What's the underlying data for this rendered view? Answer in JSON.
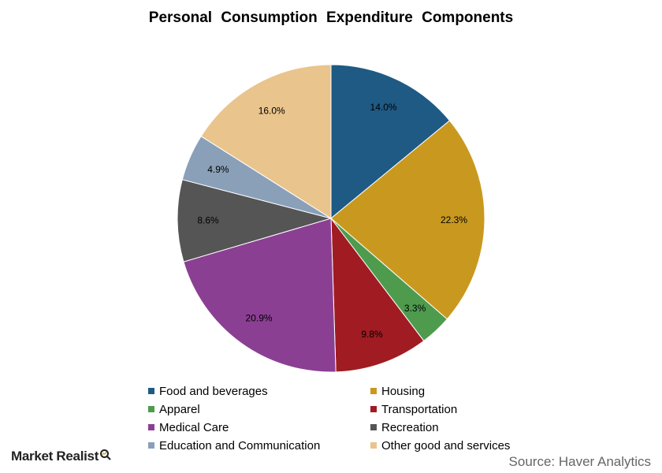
{
  "chart_data": {
    "type": "pie",
    "title": "Personal Consumption Expenditure Components",
    "slices": [
      {
        "name": "Food and beverages",
        "value": 14.0,
        "label": "14.0%",
        "color": "#1f5a84"
      },
      {
        "name": "Housing",
        "value": 22.3,
        "label": "22.3%",
        "color": "#c9991f"
      },
      {
        "name": "Apparel",
        "value": 3.3,
        "label": "3.3%",
        "color": "#4e9b4e"
      },
      {
        "name": "Transportation",
        "value": 9.8,
        "label": "9.8%",
        "color": "#a01c22"
      },
      {
        "name": "Medical Care",
        "value": 20.9,
        "label": "20.9%",
        "color": "#8b3f93"
      },
      {
        "name": "Recreation",
        "value": 8.6,
        "label": "8.6%",
        "color": "#555555"
      },
      {
        "name": "Education and Communication",
        "value": 4.9,
        "label": "4.9%",
        "color": "#8aa0b9"
      },
      {
        "name": "Other good and services",
        "value": 16.0,
        "label": "16.0%",
        "color": "#e9c48c"
      }
    ],
    "legend_position": "bottom"
  },
  "footer": {
    "brand": "Market Realist",
    "source": "Source: Haver Analytics"
  }
}
